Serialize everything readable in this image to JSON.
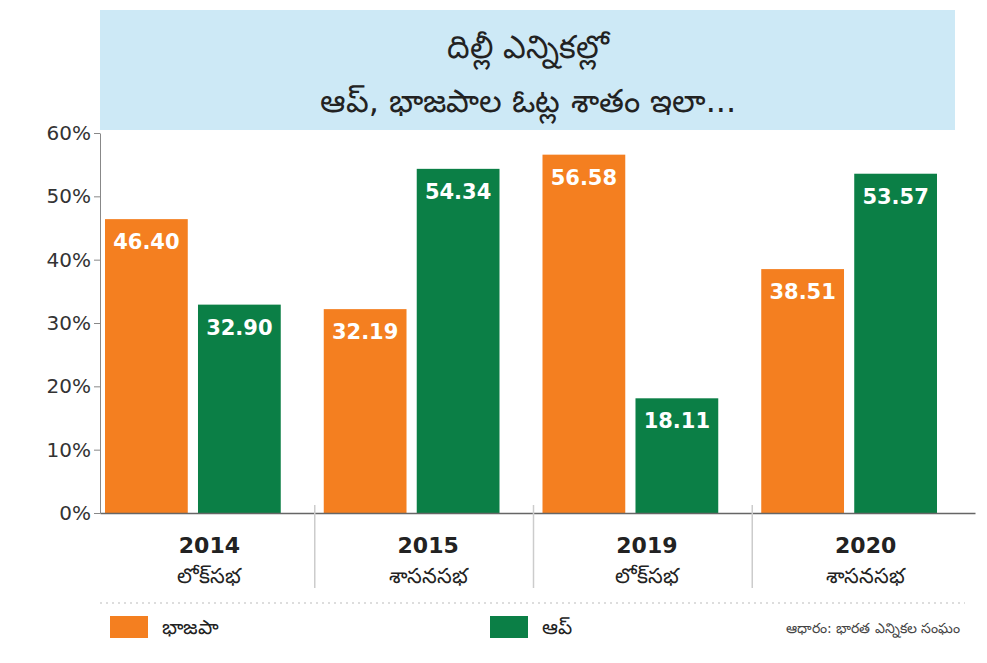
{
  "chart_data": {
    "type": "bar",
    "title": "దిల్లీ ఎన్నికల్లో",
    "subtitle": "ఆప్, భాజపాల ఓట్ల శాతం ఇలా...",
    "categories": [
      "2014\nలోక్‌సభ",
      "2015\nశాసనసభ",
      "2019\nలోక్‌సభ",
      "2020\nశాసనసభ"
    ],
    "series": [
      {
        "name": "భాజపా",
        "color": "#f47f20",
        "values": [
          46.4,
          32.19,
          56.58,
          38.51
        ],
        "value_labels": [
          "46.40",
          "32.19",
          "56.58",
          "38.51"
        ]
      },
      {
        "name": "ఆప్",
        "color": "#0b7f46",
        "values": [
          32.9,
          54.34,
          18.11,
          53.57
        ],
        "value_labels": [
          "32.90",
          "54.34",
          "18.11",
          "53.57"
        ]
      }
    ],
    "ylim": [
      0,
      60
    ],
    "yticks": [
      {
        "value": 0,
        "label": "0%"
      },
      {
        "value": 10,
        "label": "10%"
      },
      {
        "value": 20,
        "label": "20%"
      },
      {
        "value": 30,
        "label": "30%"
      },
      {
        "value": 40,
        "label": "40%"
      },
      {
        "value": 50,
        "label": "50%"
      },
      {
        "value": 60,
        "label": "60%"
      }
    ],
    "grid": false,
    "data_labels": true,
    "legend": "bottom",
    "source": "ఆధారం: భారత ఎన్నికల సంఘం"
  }
}
